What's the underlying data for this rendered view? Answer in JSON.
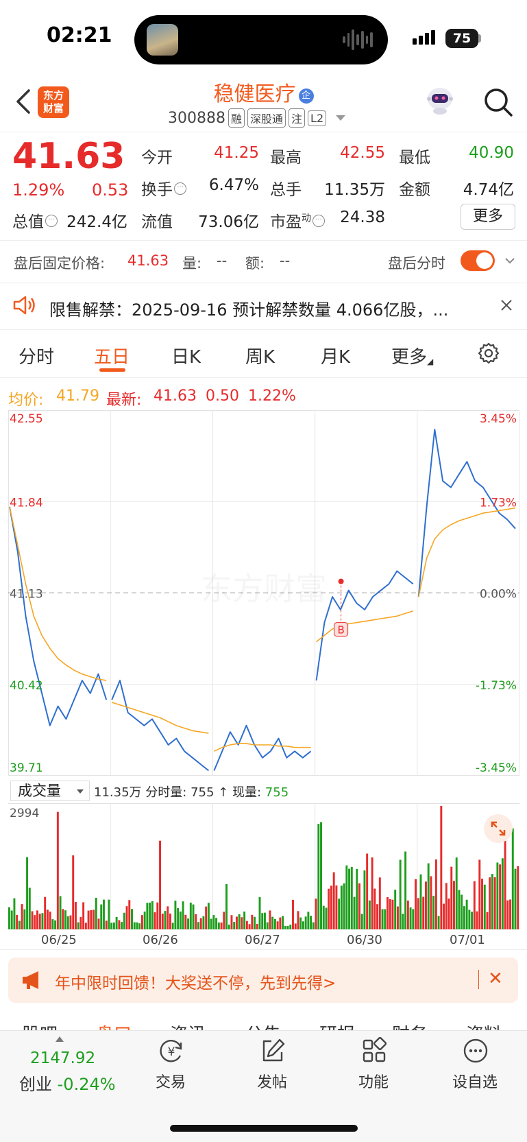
{
  "status_bar": {
    "time": "02:21",
    "battery": "75"
  },
  "header": {
    "logo_text_1": "东方",
    "logo_text_2": "财富",
    "stock_name": "稳健医疗",
    "name_badge": "企",
    "code": "300888",
    "tags": [
      "融",
      "深股通",
      "注",
      "L2"
    ]
  },
  "quote": {
    "price": "41.63",
    "change_pct": "1.29%",
    "change": "0.53",
    "open_label": "今开",
    "open": "41.25",
    "high_label": "最高",
    "high": "42.55",
    "low_label": "最低",
    "low": "40.90",
    "turnover_label": "换手",
    "turnover": "6.47%",
    "volume_label": "总手",
    "volume": "11.35万",
    "amount_label": "金额",
    "amount": "4.74亿",
    "mktcap_label": "总值",
    "mktcap": "242.4亿",
    "float_label": "流值",
    "float": "73.06亿",
    "pe_label": "市盈",
    "pe_sup": "动",
    "pe": "24.38",
    "more_label": "更多"
  },
  "after_hours": {
    "price_label": "盘后固定价格:",
    "price": "41.63",
    "vol_label": "量:",
    "vol": "--",
    "amt_label": "额:",
    "amt": "--",
    "intraday_label": "盘后分时"
  },
  "notice": {
    "text": "限售解禁：2025-09-16 预计解禁数量 4.066亿股，..."
  },
  "tabs": [
    {
      "label": "分时"
    },
    {
      "label": "五日"
    },
    {
      "label": "日K"
    },
    {
      "label": "周K"
    },
    {
      "label": "月K"
    },
    {
      "label": "更多"
    }
  ],
  "legend": {
    "avg_label": "均价:",
    "avg": "41.79",
    "latest_label": "最新:",
    "latest": "41.63",
    "latest_change": "0.50",
    "latest_pct": "1.22%"
  },
  "chart_data": {
    "type": "line",
    "title": "",
    "x": [
      "06/25",
      "06/26",
      "06/27",
      "06/30",
      "07/01"
    ],
    "ylim": [
      39.71,
      42.55
    ],
    "y_ticks_left": [
      "42.55",
      "41.84",
      "41.13",
      "40.42",
      "39.71"
    ],
    "y_ticks_right": [
      "3.45%",
      "1.73%",
      "0.00%",
      "-1.73%",
      "-3.45%"
    ],
    "reference_price": 41.13,
    "marker": {
      "label": "B",
      "day": "06/30",
      "price": 41.22
    },
    "series": [
      {
        "name": "最新",
        "color": "#2f6fd0",
        "per_day_points": [
          [
            41.8,
            41.45,
            40.95,
            40.6,
            40.35,
            40.1,
            40.25,
            40.15,
            40.3,
            40.45,
            40.35,
            40.5,
            40.3
          ],
          [
            40.3,
            40.45,
            40.2,
            40.15,
            40.1,
            40.15,
            40.05,
            39.95,
            40.0,
            39.9,
            39.85,
            39.8,
            39.75
          ],
          [
            39.75,
            39.9,
            40.05,
            39.95,
            40.1,
            39.95,
            39.85,
            39.9,
            40.0,
            39.85,
            39.9,
            39.85,
            39.9
          ],
          [
            40.45,
            40.9,
            41.1,
            41.0,
            41.15,
            41.05,
            41.0,
            41.1,
            41.15,
            41.2,
            41.3,
            41.25,
            41.2
          ],
          [
            41.1,
            41.8,
            42.4,
            42.0,
            41.95,
            42.05,
            42.15,
            42.0,
            41.95,
            41.85,
            41.75,
            41.7,
            41.63
          ]
        ]
      },
      {
        "name": "均价",
        "color": "#f5a623",
        "per_day_points": [
          [
            41.8,
            41.5,
            41.2,
            40.95,
            40.8,
            40.7,
            40.62,
            40.57,
            40.53,
            40.5,
            40.48,
            40.46,
            40.45
          ],
          [
            40.28,
            40.26,
            40.24,
            40.22,
            40.2,
            40.18,
            40.16,
            40.13,
            40.1,
            40.08,
            40.06,
            40.05,
            40.04
          ],
          [
            39.9,
            39.93,
            39.95,
            39.96,
            39.96,
            39.95,
            39.95,
            39.95,
            39.94,
            39.94,
            39.93,
            39.93,
            39.93
          ],
          [
            40.75,
            40.8,
            40.85,
            40.87,
            40.89,
            40.9,
            40.91,
            40.92,
            40.93,
            40.94,
            40.95,
            40.97,
            40.99
          ],
          [
            41.1,
            41.4,
            41.55,
            41.62,
            41.66,
            41.69,
            41.71,
            41.73,
            41.75,
            41.76,
            41.77,
            41.78,
            41.79
          ]
        ]
      }
    ]
  },
  "volume": {
    "selector_label": "成交量",
    "total": "11.35万",
    "minute_label": "分时量:",
    "minute_value": "755 ↑",
    "current_label": "现量:",
    "current_value": "755",
    "max_tick": "2994"
  },
  "volume_data": {
    "type": "bar",
    "ylim": [
      0,
      2994
    ],
    "bars_per_day": 40,
    "day_levels": [
      620,
      520,
      330,
      1400,
      1300
    ],
    "peaks": [
      2850,
      2150,
      1100,
      2600,
      2450
    ],
    "up_color": "#e62b2b",
    "down_color": "#1e9e1e"
  },
  "promo": {
    "text": "年中限时回馈！大奖送不停，先到先得>",
    "close": "✕"
  },
  "section_tabs": [
    "股吧",
    "盘口",
    "资讯",
    "公告",
    "研报",
    "财务",
    "资料"
  ],
  "bottom_nav": {
    "index_value": "2147.92",
    "index_name": "创业",
    "index_change": "-0.24%",
    "items": [
      {
        "label": "交易",
        "icon": "yuan-refresh-icon"
      },
      {
        "label": "发帖",
        "icon": "edit-icon"
      },
      {
        "label": "功能",
        "icon": "grid-icon"
      },
      {
        "label": "设自选",
        "icon": "more-icon"
      }
    ]
  }
}
